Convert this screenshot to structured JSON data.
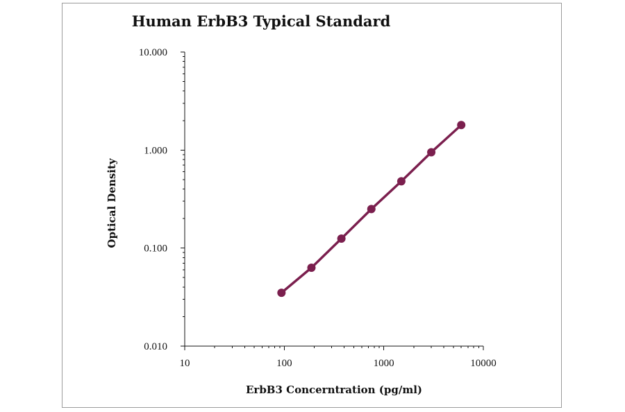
{
  "chart_data": {
    "type": "line",
    "title": "Human ErbB3 Typical Standard",
    "xlabel": "ErbB3 Concerntration (pg/ml)",
    "ylabel": "Optical Density",
    "x_scale": "log",
    "y_scale": "log",
    "xlim": [
      10,
      10000
    ],
    "ylim": [
      0.01,
      10
    ],
    "x_ticks": [
      "10",
      "100",
      "1000",
      "10000"
    ],
    "y_ticks": [
      "10.000",
      "1.000",
      "0.100",
      "0.010"
    ],
    "grid": false,
    "legend": "none",
    "series": [
      {
        "color": "#7b1f4e",
        "x": [
          93.75,
          187.5,
          375,
          750,
          1500,
          3000,
          6000
        ],
        "y": [
          0.035,
          0.063,
          0.125,
          0.25,
          0.48,
          0.95,
          1.8
        ]
      }
    ]
  }
}
